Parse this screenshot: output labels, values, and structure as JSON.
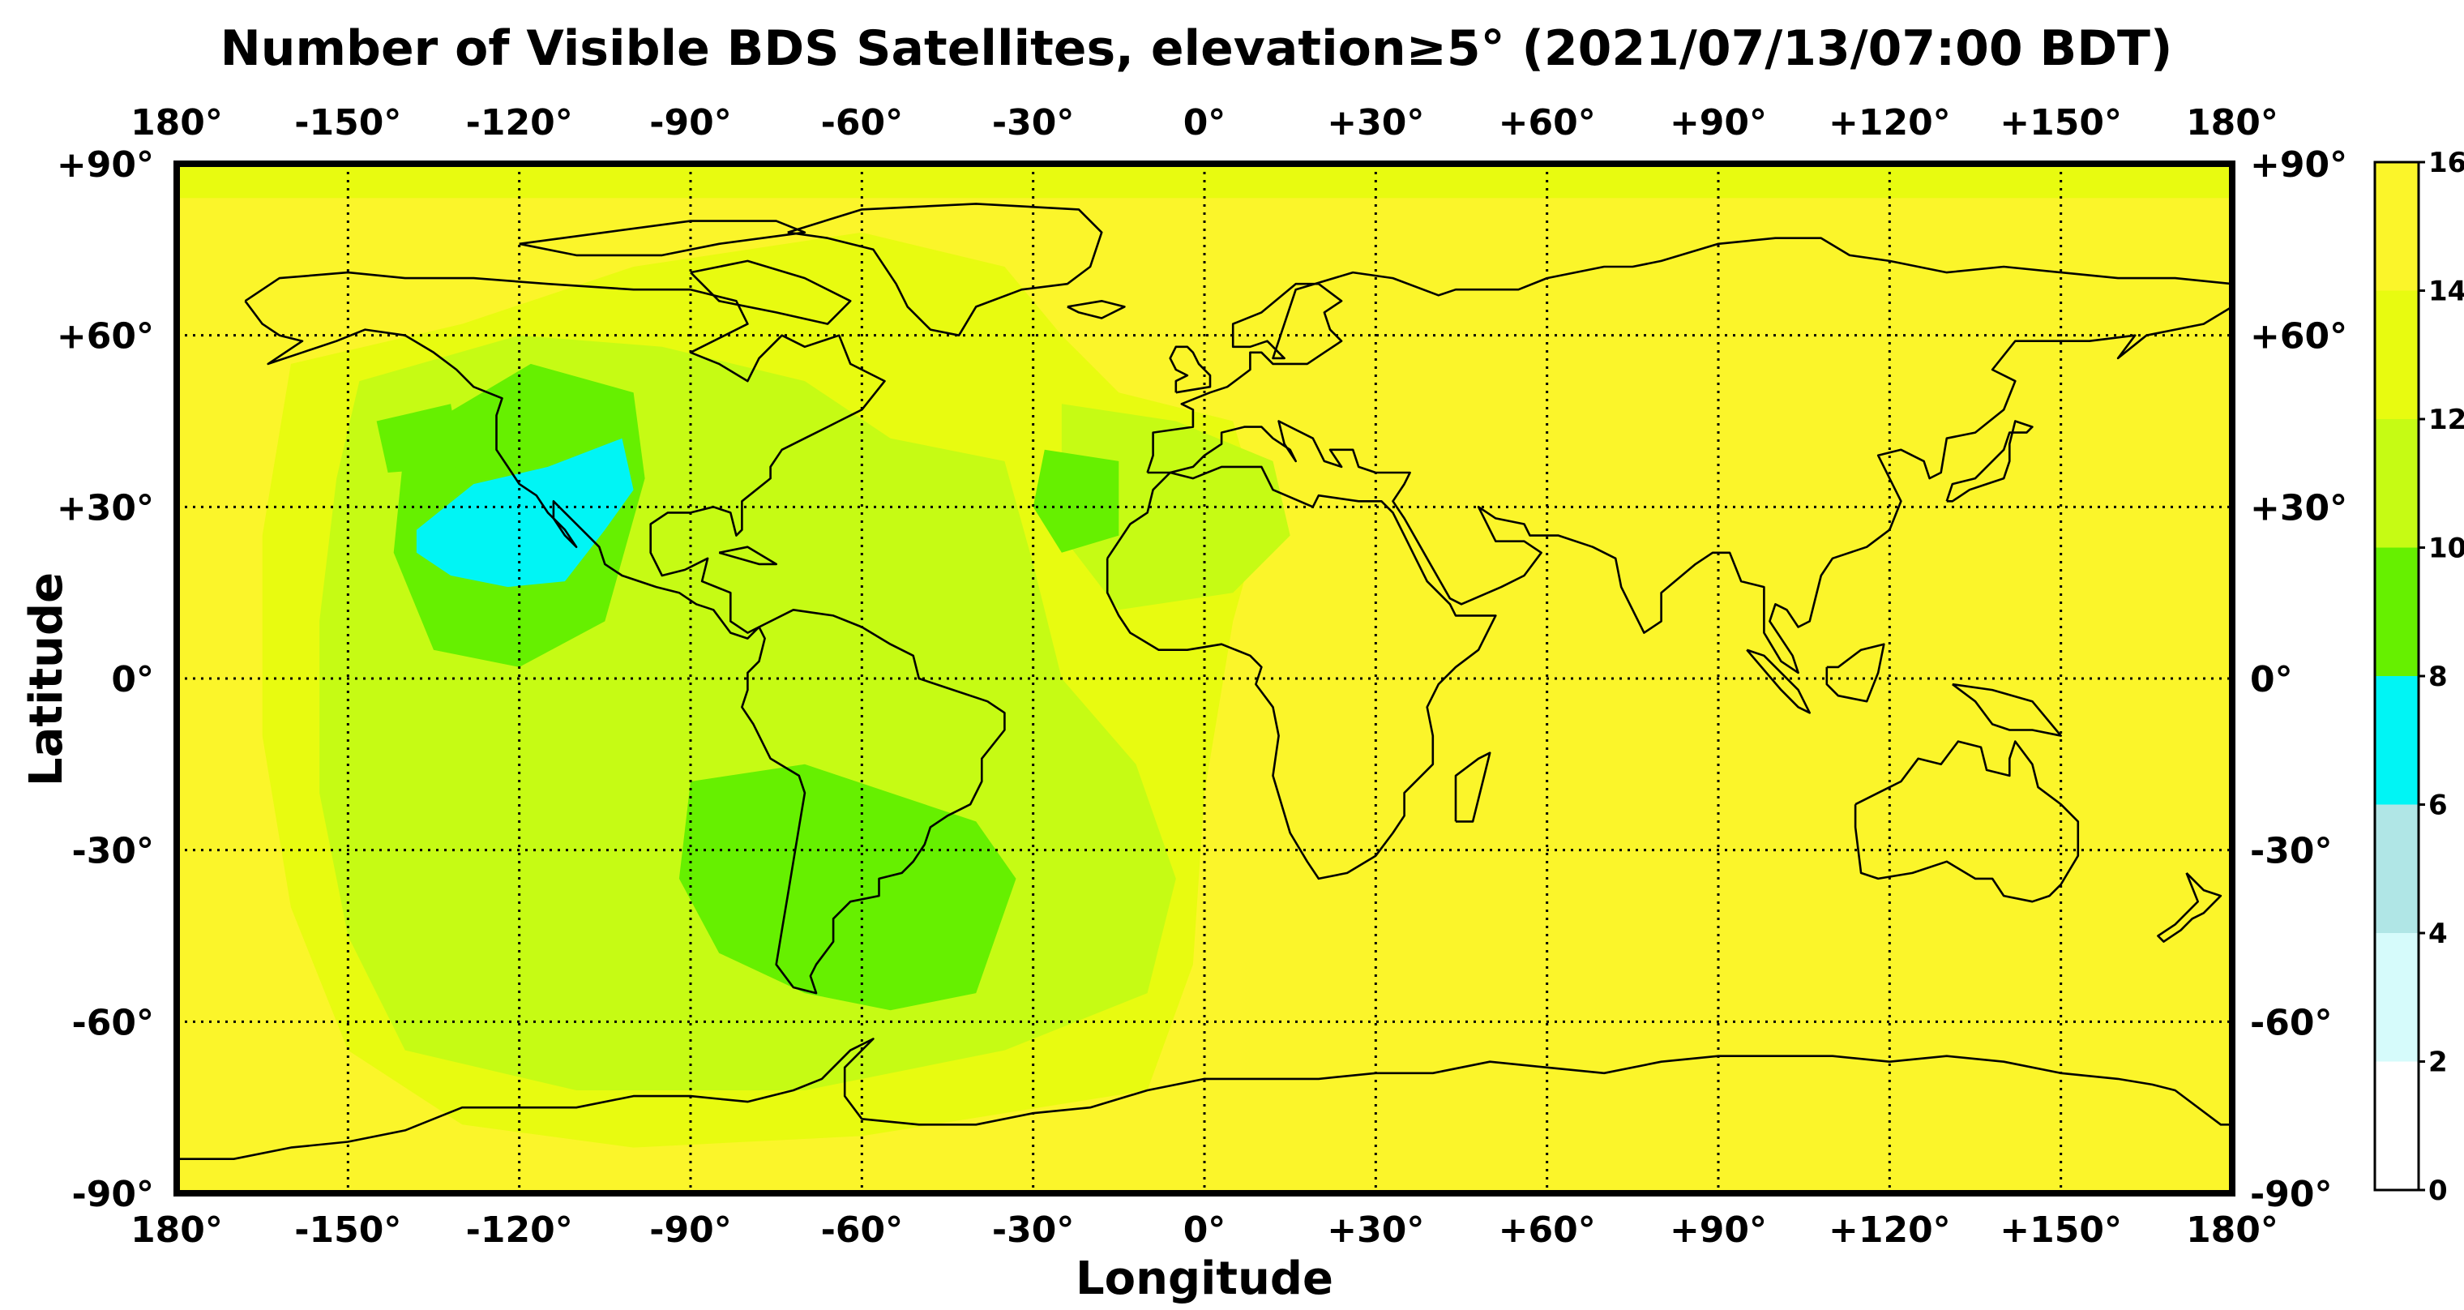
{
  "title": "Number of Visible BDS Satellites, elevation≥5° (2021/07/13/07:00 BDT)",
  "xlabel": "Longitude",
  "ylabel": "Latitude",
  "lon_ticks": [
    {
      "value": -180,
      "label": "180°"
    },
    {
      "value": -150,
      "label": "-150°"
    },
    {
      "value": -120,
      "label": "-120°"
    },
    {
      "value": -90,
      "label": "-90°"
    },
    {
      "value": -60,
      "label": "-60°"
    },
    {
      "value": -30,
      "label": "-30°"
    },
    {
      "value": 0,
      "label": "0°"
    },
    {
      "value": 30,
      "label": "+30°"
    },
    {
      "value": 60,
      "label": "+60°"
    },
    {
      "value": 90,
      "label": "+90°"
    },
    {
      "value": 120,
      "label": "+120°"
    },
    {
      "value": 150,
      "label": "+150°"
    },
    {
      "value": 180,
      "label": "180°"
    }
  ],
  "lat_ticks": [
    {
      "value": 90,
      "label": "+90°"
    },
    {
      "value": 60,
      "label": "+60°"
    },
    {
      "value": 30,
      "label": "+30°"
    },
    {
      "value": 0,
      "label": "0°"
    },
    {
      "value": -30,
      "label": "-30°"
    },
    {
      "value": -60,
      "label": "-60°"
    },
    {
      "value": -90,
      "label": "-90°"
    }
  ],
  "colorbar": {
    "range": [
      0,
      16
    ],
    "tick_labels": [
      "0",
      "2",
      "4",
      "6",
      "8",
      "10",
      "12",
      "14",
      "16"
    ],
    "bands": [
      {
        "from": 0,
        "to": 2,
        "color": "#ffffff"
      },
      {
        "from": 2,
        "to": 4,
        "color": "#d6fbfb"
      },
      {
        "from": 4,
        "to": 6,
        "color": "#b0e6e6"
      },
      {
        "from": 6,
        "to": 8,
        "color": "#00f5f5"
      },
      {
        "from": 8,
        "to": 10,
        "color": "#66f000"
      },
      {
        "from": 10,
        "to": 12,
        "color": "#c6fb14"
      },
      {
        "from": 12,
        "to": 14,
        "color": "#e8fb10"
      },
      {
        "from": 14,
        "to": 16,
        "color": "#fbf52a"
      }
    ]
  },
  "chart_data": {
    "type": "heatmap",
    "projection": "equirectangular",
    "lon_range": [
      -180,
      180
    ],
    "lat_range": [
      -90,
      90
    ],
    "grid": true,
    "background_value": 15,
    "regions": [
      {
        "name": "eastern-hemisphere",
        "value": 15,
        "polygon": [
          [
            -5,
            90
          ],
          [
            180,
            90
          ],
          [
            180,
            -90
          ],
          [
            -5,
            -90
          ]
        ]
      },
      {
        "name": "arctic-band",
        "value": 13,
        "polygon": [
          [
            -180,
            90
          ],
          [
            180,
            90
          ],
          [
            180,
            84
          ],
          [
            -180,
            84
          ]
        ]
      },
      {
        "name": "western-wide",
        "value": 13,
        "polygon": [
          [
            -160,
            55
          ],
          [
            -130,
            62
          ],
          [
            -100,
            72
          ],
          [
            -60,
            78
          ],
          [
            -35,
            72
          ],
          [
            -25,
            60
          ],
          [
            -15,
            50
          ],
          [
            5,
            45
          ],
          [
            10,
            28
          ],
          [
            5,
            10
          ],
          [
            0,
            -20
          ],
          [
            -2,
            -50
          ],
          [
            -10,
            -72
          ],
          [
            -60,
            -80
          ],
          [
            -100,
            -82
          ],
          [
            -130,
            -78
          ],
          [
            -150,
            -65
          ],
          [
            -160,
            -40
          ],
          [
            -165,
            -10
          ],
          [
            -165,
            25
          ]
        ]
      },
      {
        "name": "pacific-mid",
        "value": 11,
        "polygon": [
          [
            -148,
            52
          ],
          [
            -120,
            60
          ],
          [
            -95,
            58
          ],
          [
            -70,
            52
          ],
          [
            -55,
            42
          ],
          [
            -35,
            38
          ],
          [
            -30,
            20
          ],
          [
            -25,
            0
          ],
          [
            -12,
            -15
          ],
          [
            -5,
            -35
          ],
          [
            -10,
            -55
          ],
          [
            -35,
            -65
          ],
          [
            -70,
            -72
          ],
          [
            -110,
            -72
          ],
          [
            -140,
            -65
          ],
          [
            -150,
            -45
          ],
          [
            -155,
            -20
          ],
          [
            -155,
            10
          ],
          [
            -152,
            35
          ]
        ]
      },
      {
        "name": "atlantic-east",
        "value": 11,
        "polygon": [
          [
            -25,
            48
          ],
          [
            -5,
            45
          ],
          [
            12,
            38
          ],
          [
            15,
            25
          ],
          [
            5,
            15
          ],
          [
            -15,
            12
          ],
          [
            -25,
            25
          ]
        ]
      },
      {
        "name": "california-green",
        "value": 9,
        "polygon": [
          [
            -140,
            42
          ],
          [
            -118,
            55
          ],
          [
            -100,
            50
          ],
          [
            -98,
            35
          ],
          [
            -105,
            10
          ],
          [
            -120,
            2
          ],
          [
            -135,
            5
          ],
          [
            -142,
            22
          ]
        ]
      },
      {
        "name": "alaska-green",
        "value": 9,
        "polygon": [
          [
            -145,
            45
          ],
          [
            -132,
            48
          ],
          [
            -130,
            37
          ],
          [
            -143,
            36
          ]
        ]
      },
      {
        "name": "south-america-green",
        "value": 9,
        "polygon": [
          [
            -90,
            -18
          ],
          [
            -70,
            -15
          ],
          [
            -55,
            -20
          ],
          [
            -40,
            -25
          ],
          [
            -33,
            -35
          ],
          [
            -40,
            -55
          ],
          [
            -55,
            -58
          ],
          [
            -70,
            -55
          ],
          [
            -85,
            -48
          ],
          [
            -92,
            -35
          ]
        ]
      },
      {
        "name": "north-atlantic-green",
        "value": 9,
        "polygon": [
          [
            -28,
            40
          ],
          [
            -15,
            38
          ],
          [
            -15,
            25
          ],
          [
            -25,
            22
          ],
          [
            -30,
            30
          ]
        ]
      },
      {
        "name": "cyan-hole",
        "value": 7,
        "polygon": [
          [
            -138,
            26
          ],
          [
            -128,
            34
          ],
          [
            -115,
            37
          ],
          [
            -102,
            42
          ],
          [
            -100,
            33
          ],
          [
            -105,
            26
          ],
          [
            -112,
            17
          ],
          [
            -122,
            16
          ],
          [
            -132,
            18
          ],
          [
            -138,
            22
          ]
        ]
      }
    ]
  }
}
